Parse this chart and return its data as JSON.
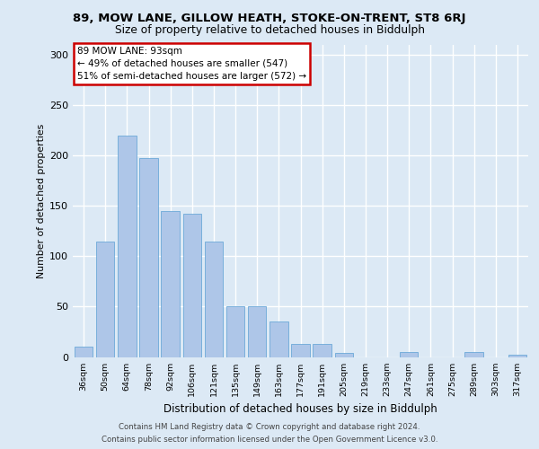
{
  "title1": "89, MOW LANE, GILLOW HEATH, STOKE-ON-TRENT, ST8 6RJ",
  "title2": "Size of property relative to detached houses in Biddulph",
  "xlabel": "Distribution of detached houses by size in Biddulph",
  "ylabel": "Number of detached properties",
  "categories": [
    "36sqm",
    "50sqm",
    "64sqm",
    "78sqm",
    "92sqm",
    "106sqm",
    "121sqm",
    "135sqm",
    "149sqm",
    "163sqm",
    "177sqm",
    "191sqm",
    "205sqm",
    "219sqm",
    "233sqm",
    "247sqm",
    "261sqm",
    "275sqm",
    "289sqm",
    "303sqm",
    "317sqm"
  ],
  "values": [
    10,
    115,
    220,
    198,
    145,
    142,
    115,
    50,
    50,
    35,
    13,
    13,
    4,
    0,
    0,
    5,
    0,
    0,
    5,
    0,
    2
  ],
  "bar_color": "#aec6e8",
  "bar_edge_color": "#5a9fd4",
  "annotation_title": "89 MOW LANE: 93sqm",
  "annotation_line2": "← 49% of detached houses are smaller (547)",
  "annotation_line3": "51% of semi-detached houses are larger (572) →",
  "annotation_box_color": "#ffffff",
  "annotation_box_edge": "#cc0000",
  "background_color": "#dce9f5",
  "plot_bg_color": "#dce9f5",
  "grid_color": "#ffffff",
  "ylim": [
    0,
    310
  ],
  "yticks": [
    0,
    50,
    100,
    150,
    200,
    250,
    300
  ],
  "footer_line1": "Contains HM Land Registry data © Crown copyright and database right 2024.",
  "footer_line2": "Contains public sector information licensed under the Open Government Licence v3.0."
}
